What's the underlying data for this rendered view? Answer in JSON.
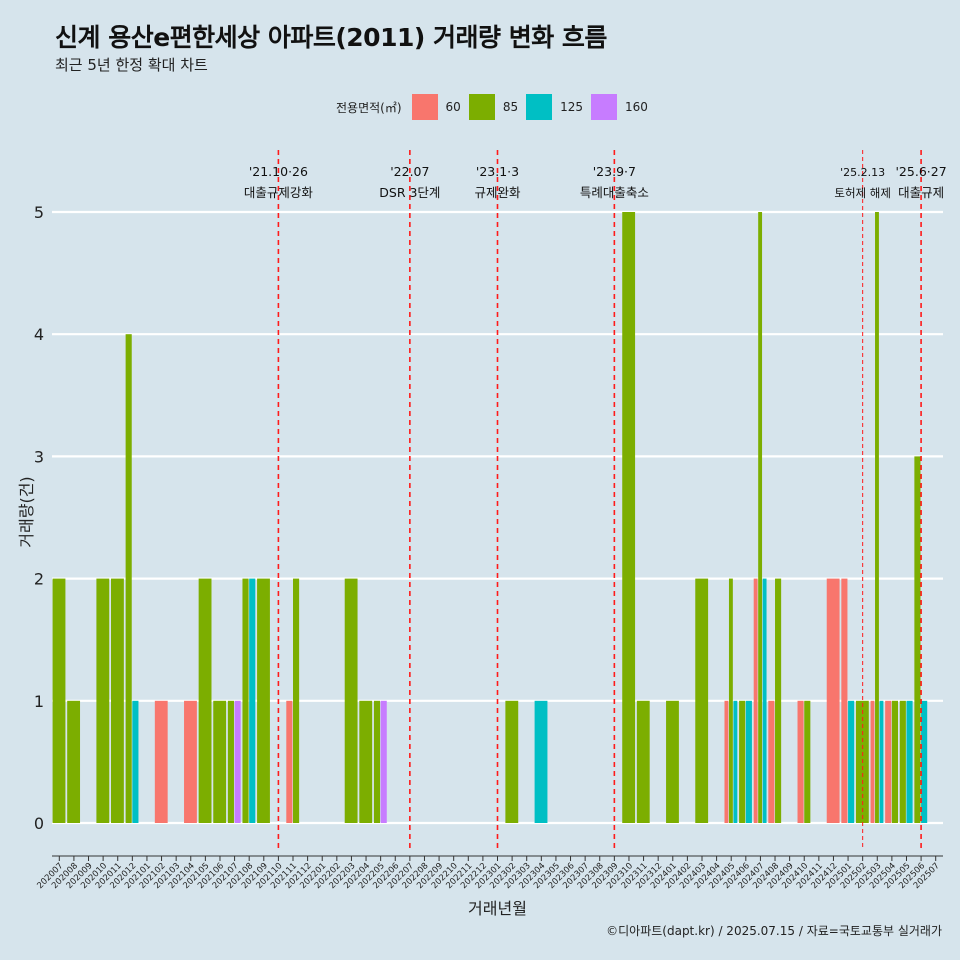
{
  "title": "신계 용산e편한세상 아파트(2011) 거래량 변화 흐름",
  "subtitle": "최근 5년 한정 확대 차트",
  "caption": "©디아파트(dapt.kr) / 2025.07.15 / 자료=국토교통부 실거래가",
  "legend": {
    "title": "전용면적(㎡)",
    "items": [
      {
        "label": "60",
        "color": "#f8766d"
      },
      {
        "label": "85",
        "color": "#7cae00"
      },
      {
        "label": "125",
        "color": "#00bfc4"
      },
      {
        "label": "160",
        "color": "#c77cff"
      }
    ]
  },
  "chart_data": {
    "type": "bar",
    "position": "dodge",
    "xlabel": "거래년월",
    "ylabel": "거래량(건)",
    "ylim": [
      0,
      5
    ],
    "yticks": [
      0,
      1,
      2,
      3,
      4,
      5
    ],
    "categories": [
      "202007",
      "202008",
      "202009",
      "202010",
      "202011",
      "202012",
      "202101",
      "202102",
      "202103",
      "202104",
      "202105",
      "202106",
      "202107",
      "202108",
      "202109",
      "202110",
      "202111",
      "202112",
      "202201",
      "202202",
      "202203",
      "202204",
      "202205",
      "202206",
      "202207",
      "202208",
      "202209",
      "202210",
      "202211",
      "202212",
      "202301",
      "202302",
      "202303",
      "202304",
      "202305",
      "202306",
      "202307",
      "202308",
      "202309",
      "202310",
      "202311",
      "202312",
      "202401",
      "202402",
      "202403",
      "202404",
      "202405",
      "202406",
      "202407",
      "202408",
      "202409",
      "202410",
      "202411",
      "202412",
      "202501",
      "202502",
      "202503",
      "202504",
      "202505",
      "202506",
      "202507"
    ],
    "bars": [
      {
        "month": "202007",
        "groups": [
          {
            "size": "85",
            "value": 2
          }
        ]
      },
      {
        "month": "202008",
        "groups": [
          {
            "size": "85",
            "value": 1
          }
        ]
      },
      {
        "month": "202010",
        "groups": [
          {
            "size": "85",
            "value": 2
          }
        ]
      },
      {
        "month": "202011",
        "groups": [
          {
            "size": "85",
            "value": 2
          }
        ]
      },
      {
        "month": "202012",
        "groups": [
          {
            "size": "85",
            "value": 4
          },
          {
            "size": "125",
            "value": 1
          }
        ]
      },
      {
        "month": "202102",
        "groups": [
          {
            "size": "60",
            "value": 1
          }
        ]
      },
      {
        "month": "202104",
        "groups": [
          {
            "size": "60",
            "value": 1
          }
        ]
      },
      {
        "month": "202105",
        "groups": [
          {
            "size": "85",
            "value": 2
          }
        ]
      },
      {
        "month": "202106",
        "groups": [
          {
            "size": "85",
            "value": 1
          }
        ]
      },
      {
        "month": "202107",
        "groups": [
          {
            "size": "85",
            "value": 1
          },
          {
            "size": "160",
            "value": 1
          }
        ]
      },
      {
        "month": "202108",
        "groups": [
          {
            "size": "85",
            "value": 2
          },
          {
            "size": "125",
            "value": 2
          }
        ]
      },
      {
        "month": "202109",
        "groups": [
          {
            "size": "85",
            "value": 2
          }
        ]
      },
      {
        "month": "202111",
        "groups": [
          {
            "size": "60",
            "value": 1
          },
          {
            "size": "85",
            "value": 2
          }
        ]
      },
      {
        "month": "202203",
        "groups": [
          {
            "size": "85",
            "value": 2
          }
        ]
      },
      {
        "month": "202204",
        "groups": [
          {
            "size": "85",
            "value": 1
          }
        ]
      },
      {
        "month": "202205",
        "groups": [
          {
            "size": "85",
            "value": 1
          },
          {
            "size": "160",
            "value": 1
          }
        ]
      },
      {
        "month": "202302",
        "groups": [
          {
            "size": "85",
            "value": 1
          }
        ]
      },
      {
        "month": "202304",
        "groups": [
          {
            "size": "125",
            "value": 1
          }
        ]
      },
      {
        "month": "202310",
        "groups": [
          {
            "size": "85",
            "value": 5
          }
        ]
      },
      {
        "month": "202311",
        "groups": [
          {
            "size": "85",
            "value": 1
          }
        ]
      },
      {
        "month": "202401",
        "groups": [
          {
            "size": "85",
            "value": 1
          }
        ]
      },
      {
        "month": "202403",
        "groups": [
          {
            "size": "85",
            "value": 2
          }
        ]
      },
      {
        "month": "202405",
        "groups": [
          {
            "size": "60",
            "value": 1
          },
          {
            "size": "85",
            "value": 2
          },
          {
            "size": "125",
            "value": 1
          }
        ]
      },
      {
        "month": "202406",
        "groups": [
          {
            "size": "85",
            "value": 1
          },
          {
            "size": "125",
            "value": 1
          }
        ]
      },
      {
        "month": "202407",
        "groups": [
          {
            "size": "60",
            "value": 2
          },
          {
            "size": "85",
            "value": 5
          },
          {
            "size": "125",
            "value": 2
          }
        ]
      },
      {
        "month": "202408",
        "groups": [
          {
            "size": "60",
            "value": 1
          },
          {
            "size": "85",
            "value": 2
          }
        ]
      },
      {
        "month": "202410",
        "groups": [
          {
            "size": "60",
            "value": 1
          },
          {
            "size": "85",
            "value": 1
          }
        ]
      },
      {
        "month": "202412",
        "groups": [
          {
            "size": "60",
            "value": 2
          }
        ]
      },
      {
        "month": "202501",
        "groups": [
          {
            "size": "60",
            "value": 2
          },
          {
            "size": "125",
            "value": 1
          }
        ]
      },
      {
        "month": "202502",
        "groups": [
          {
            "size": "85",
            "value": 1
          }
        ]
      },
      {
        "month": "202503",
        "groups": [
          {
            "size": "60",
            "value": 1
          },
          {
            "size": "85",
            "value": 5
          },
          {
            "size": "125",
            "value": 1
          }
        ]
      },
      {
        "month": "202504",
        "groups": [
          {
            "size": "60",
            "value": 1
          },
          {
            "size": "85",
            "value": 1
          }
        ]
      },
      {
        "month": "202505",
        "groups": [
          {
            "size": "85",
            "value": 1
          },
          {
            "size": "125",
            "value": 1
          }
        ]
      },
      {
        "month": "202506",
        "groups": [
          {
            "size": "85",
            "value": 3
          },
          {
            "size": "125",
            "value": 1
          }
        ]
      }
    ],
    "annotations": [
      {
        "month": "202110",
        "date": "'21.10·26",
        "label": "대출규제강화",
        "style": "dashed"
      },
      {
        "month": "202207",
        "date": "'22.07",
        "label": "DSR 3단계",
        "style": "dashed"
      },
      {
        "month": "202301",
        "date": "'23.1·3",
        "label": "규제완화",
        "style": "dashed"
      },
      {
        "month": "202309",
        "date": "'23.9·7",
        "label": "특례대출축소",
        "style": "dashed"
      },
      {
        "month": "202502",
        "date": "'25.2.13",
        "label": "토허제 해제",
        "style": "thin-dashed"
      },
      {
        "month": "202506",
        "date": "'25.6·27",
        "label": "대출규제",
        "style": "dashed"
      }
    ]
  }
}
